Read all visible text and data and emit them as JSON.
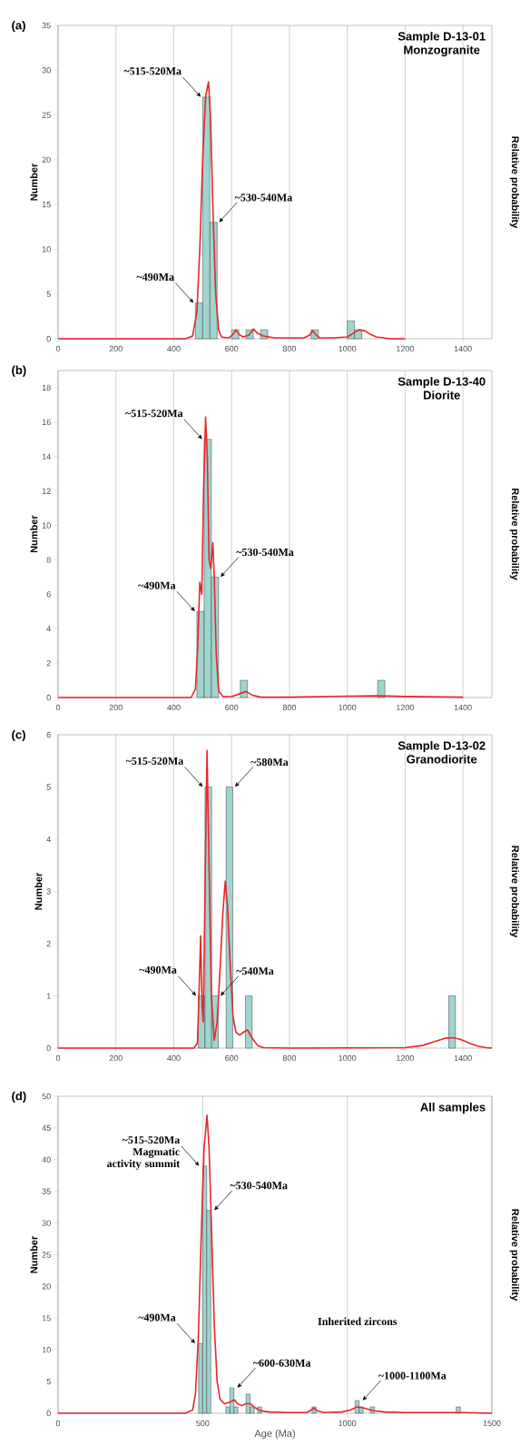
{
  "chart_data": [
    {
      "type": "histogram",
      "title": "Sample D-13-01",
      "subtitle": "Monzogranite",
      "ylabel": "Number",
      "y2label": "Relative probability",
      "xlim": [
        0,
        1500
      ],
      "xticks": [
        0,
        200,
        400,
        600,
        800,
        1000,
        1200,
        1400
      ],
      "ylim": [
        0,
        35
      ],
      "yticks": [
        0,
        5,
        10,
        15,
        20,
        25,
        30,
        35
      ],
      "grid": "x",
      "series": [
        {
          "color": "#9fd4cf",
          "bins": [
            475,
            500,
            525,
            550,
            600,
            625,
            650,
            675,
            700,
            725,
            875,
            900,
            1000,
            1025,
            1050
          ],
          "values": [
            4,
            27,
            13,
            0,
            1,
            0,
            1,
            0,
            1,
            0,
            1,
            0,
            2,
            1
          ]
        },
        {
          "type": "line",
          "color": "#e8262b",
          "x": [
            0,
            440,
            465,
            480,
            490,
            500,
            510,
            520,
            527,
            535,
            545,
            555,
            565,
            590,
            605,
            615,
            625,
            640,
            660,
            675,
            690,
            710,
            750,
            850,
            870,
            880,
            890,
            905,
            950,
            1000,
            1020,
            1040,
            1060,
            1080,
            1100,
            1150,
            1200
          ],
          "values": [
            0,
            0,
            0.3,
            3,
            10,
            20,
            27,
            28.7,
            25,
            15,
            5,
            1,
            0.2,
            0.1,
            0.5,
            1.0,
            0.5,
            0.2,
            0.4,
            1.1,
            0.6,
            0.3,
            0.1,
            0.1,
            0.4,
            0.9,
            0.5,
            0.1,
            0.1,
            0.2,
            0.6,
            1.0,
            0.9,
            0.5,
            0.2,
            0,
            0
          ]
        }
      ],
      "annotations": [
        "(a)",
        {
          "text": "~515-520Ma",
          "x": 512.5,
          "y": 27
        },
        {
          "text": "~530-540Ma",
          "x": 537.5,
          "y": 13
        },
        {
          "text": "~490Ma",
          "x": 487.5,
          "y": 4
        }
      ]
    },
    {
      "type": "histogram",
      "title": "Sample D-13-40",
      "subtitle": "Diorite",
      "ylabel": "Number",
      "y2label": "Relative probability",
      "xlim": [
        0,
        1500
      ],
      "xticks": [
        0,
        200,
        400,
        600,
        800,
        1000,
        1200,
        1400
      ],
      "ylim": [
        0,
        19
      ],
      "yticks": [
        0,
        2,
        4,
        6,
        8,
        10,
        12,
        14,
        16,
        18
      ],
      "grid": "x",
      "series": [
        {
          "color": "#9fd4cf",
          "bins": [
            480,
            505,
            530,
            555,
            630,
            655,
            1105,
            1130
          ],
          "values": [
            5,
            15,
            7,
            0,
            1,
            0,
            1
          ]
        },
        {
          "type": "line",
          "color": "#e8262b",
          "x": [
            0,
            460,
            475,
            483,
            490,
            497,
            503,
            510,
            516,
            522,
            528,
            535,
            540,
            547,
            555,
            570,
            600,
            625,
            650,
            670,
            700,
            800,
            1000,
            1100,
            1200,
            1400
          ],
          "values": [
            0,
            0,
            0.5,
            3,
            6.7,
            6.0,
            12,
            16.3,
            14,
            8,
            7.5,
            9,
            7,
            2.5,
            0.4,
            0.05,
            0.05,
            0.2,
            0.35,
            0.15,
            0.02,
            0.02,
            0.08,
            0.1,
            0.06,
            0.02
          ]
        }
      ],
      "annotations": [
        "(b)",
        {
          "text": "~515-520Ma",
          "x": 517.5,
          "y": 15
        },
        {
          "text": "~530-540Ma",
          "x": 542.5,
          "y": 7
        },
        {
          "text": "~490Ma",
          "x": 492.5,
          "y": 5
        }
      ]
    },
    {
      "type": "histogram",
      "title": "Sample D-13-02",
      "subtitle": "Granodiorite",
      "ylabel": "Number",
      "y2label": "Relative probability",
      "xlim": [
        0,
        1500
      ],
      "xticks": [
        0,
        200,
        400,
        600,
        800,
        1000,
        1200,
        1400
      ],
      "ylim": [
        0,
        6
      ],
      "yticks": [
        0,
        1,
        2,
        3,
        4,
        5,
        6
      ],
      "grid": "x",
      "series": [
        {
          "color": "#9fd4cf",
          "bins": [
            485,
            508,
            531,
            554,
            581,
            604,
            648,
            671,
            1351,
            1374
          ],
          "values": [
            1,
            5,
            1,
            0,
            5,
            0,
            1,
            0,
            1
          ]
        },
        {
          "type": "line",
          "color": "#e8262b",
          "x": [
            0,
            470,
            482,
            488,
            493,
            498,
            502,
            508,
            515,
            522,
            530,
            540,
            550,
            560,
            570,
            578,
            586,
            595,
            605,
            615,
            628,
            640,
            655,
            670,
            690,
            710,
            800,
            1200,
            1260,
            1300,
            1340,
            1365,
            1390,
            1420,
            1450,
            1480,
            1500
          ],
          "values": [
            0,
            0,
            0.1,
            1.2,
            2.15,
            0.8,
            0.5,
            3,
            5.7,
            3.5,
            1,
            0.15,
            0.5,
            1.5,
            2.6,
            3.2,
            2.7,
            1.6,
            0.6,
            0.3,
            0.25,
            0.3,
            0.35,
            0.2,
            0.05,
            0.01,
            0,
            0.01,
            0.05,
            0.12,
            0.19,
            0.2,
            0.17,
            0.1,
            0.04,
            0.01,
            0
          ]
        }
      ],
      "annotations": [
        "(c)",
        {
          "text": "~515-520Ma",
          "x": 519.5,
          "y": 5
        },
        {
          "text": "~580Ma",
          "x": 592.5,
          "y": 5
        },
        {
          "text": "~540Ma",
          "x": 542.5,
          "y": 1
        },
        {
          "text": "~490Ma",
          "x": 496.5,
          "y": 1
        }
      ]
    },
    {
      "type": "histogram",
      "title": "All samples",
      "xlabel": "Age (Ma)",
      "ylabel": "Number",
      "y2label": "Relative probability",
      "xlim": [
        0,
        1500
      ],
      "xticks": [
        0,
        500,
        1000,
        1500
      ],
      "ylim": [
        0,
        50
      ],
      "yticks": [
        0,
        5,
        10,
        15,
        20,
        25,
        30,
        35,
        40,
        45,
        50
      ],
      "grid": "x",
      "series": [
        {
          "color": "#9fd4cf",
          "bins": [
            486,
            500,
            514,
            528,
            580,
            594,
            608,
            622,
            650,
            664,
            678,
            690,
            704,
            878,
            892,
            1027,
            1041,
            1055,
            1080,
            1094,
            1377,
            1391
          ],
          "values": [
            11,
            39,
            32,
            0,
            1,
            4,
            1,
            0,
            3,
            1,
            0,
            1,
            0,
            1,
            0,
            2,
            1,
            0,
            1,
            0,
            1
          ]
        },
        {
          "type": "line",
          "color": "#e8262b",
          "x": [
            0,
            440,
            465,
            475,
            485,
            495,
            505,
            515,
            522,
            530,
            540,
            550,
            560,
            575,
            590,
            600,
            610,
            620,
            635,
            650,
            665,
            680,
            700,
            730,
            800,
            860,
            875,
            885,
            895,
            920,
            980,
            1010,
            1035,
            1060,
            1090,
            1130,
            1200,
            1400,
            1500
          ],
          "values": [
            0,
            0,
            0.5,
            3,
            12,
            28,
            42,
            47,
            42,
            30,
            14,
            5,
            2.2,
            1.5,
            1.7,
            1.9,
            2.1,
            1.5,
            1.2,
            1.5,
            1.5,
            0.9,
            0.4,
            0.2,
            0.1,
            0.1,
            0.5,
            0.8,
            0.4,
            0.1,
            0.2,
            0.5,
            1.0,
            0.8,
            0.4,
            0.2,
            0.1,
            0.1,
            0
          ]
        }
      ],
      "annotations": [
        "(d)",
        {
          "text": "~515-520Ma Magmatic activity summit",
          "x": 507,
          "y": 39
        },
        {
          "text": "~530-540Ma",
          "x": 521,
          "y": 32
        },
        {
          "text": "~490Ma",
          "x": 493,
          "y": 11
        },
        {
          "text": "~600-630Ma",
          "x": 601,
          "y": 4
        },
        {
          "text": "~1000-1100Ma",
          "x": 1034,
          "y": 2
        },
        "Inherited zircons"
      ]
    }
  ]
}
